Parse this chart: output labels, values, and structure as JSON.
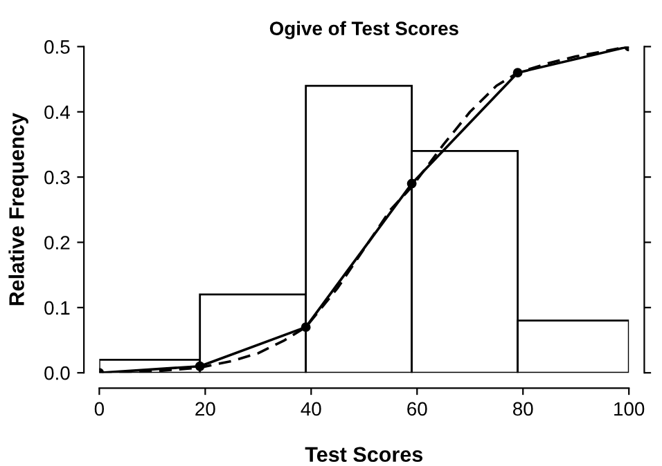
{
  "chart_data": {
    "type": "histogram",
    "title": "Ogive of Test Scores",
    "xlabel": "Test Scores",
    "ylabel": "Relative Frequency",
    "bins": [
      0,
      19,
      39,
      59,
      79,
      100
    ],
    "values": [
      0.02,
      0.12,
      0.44,
      0.34,
      0.08
    ],
    "color": "#ffffff",
    "series": [
      {
        "type": "line",
        "color": "#000000",
        "marker": "circle",
        "line_style": "solid",
        "x": [
          0,
          19,
          39,
          59,
          79,
          100
        ],
        "values": [
          0,
          0.01,
          0.07,
          0.29,
          0.46,
          0.5
        ]
      },
      {
        "type": "line",
        "color": "#000000",
        "marker": "none",
        "line_style": "dashed",
        "x": [
          0,
          10,
          19,
          25,
          30,
          35,
          39,
          45,
          50,
          55,
          59,
          65,
          70,
          75,
          79,
          85,
          90,
          100
        ],
        "values": [
          0,
          0.002,
          0.008,
          0.018,
          0.03,
          0.05,
          0.07,
          0.13,
          0.19,
          0.25,
          0.285,
          0.35,
          0.4,
          0.44,
          0.46,
          0.475,
          0.485,
          0.5
        ]
      }
    ],
    "xlim": [
      0,
      100
    ],
    "ylim": [
      0,
      0.5
    ],
    "xticks": [
      0,
      20,
      40,
      60,
      80,
      100
    ],
    "yticks": [
      {
        "value": 0,
        "label": "0.0"
      },
      0.1,
      0.2,
      0.3,
      0.4,
      0.5
    ],
    "grid": false,
    "legend": false
  }
}
